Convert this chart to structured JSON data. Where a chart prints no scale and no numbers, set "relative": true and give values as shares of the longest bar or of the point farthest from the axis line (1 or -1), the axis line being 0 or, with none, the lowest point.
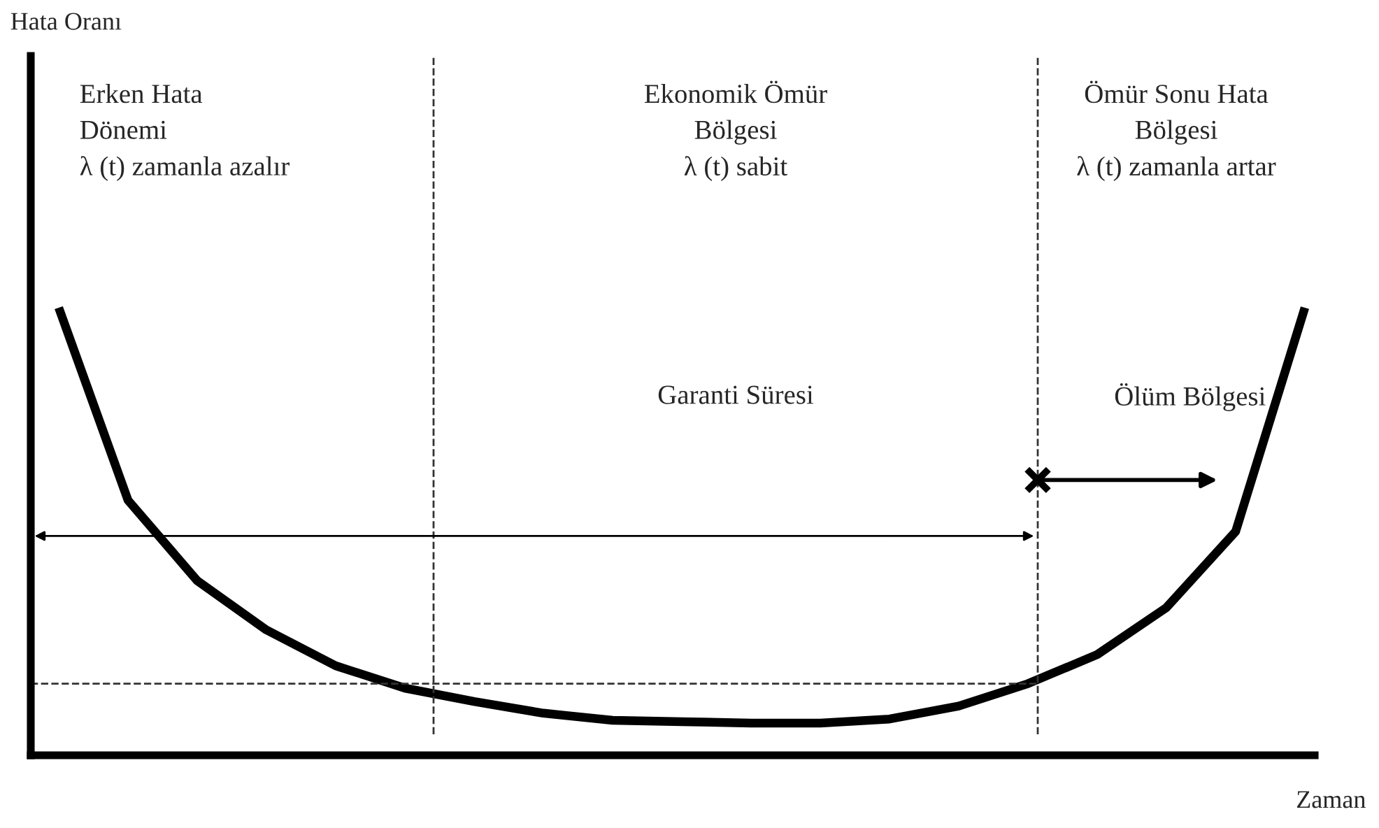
{
  "chart_data": {
    "type": "line",
    "relative": true,
    "xlabel": "Zaman",
    "categories": [
      null,
      null,
      null,
      null,
      null,
      null,
      null,
      null,
      null,
      null,
      null,
      null,
      null,
      null,
      null,
      null,
      null,
      null,
      null
    ],
    "series": [
      {
        "color": "#000000",
        "values": [
          1.0,
          0.57,
          0.39,
          0.28,
          0.2,
          0.15,
          0.12,
          0.094,
          0.078,
          0.075,
          0.072,
          0.072,
          0.081,
          0.11,
          0.16,
          0.225,
          0.33,
          0.5,
          1.0
        ]
      }
    ],
    "marker": "none",
    "line_style": "solid",
    "grid": false,
    "ref_lines": [
      {
        "axis": "y",
        "value": 0.16,
        "line_style": "dashed",
        "color": "#333333"
      }
    ],
    "annotations": [
      "Erken Hata\nDönemi\nλ (t) zamanla azalır",
      "Ekonomik Ömür\nBölgesi\nλ (t) sabit",
      "Ömür Sonu Hata\nBölgesi\nλ (t) zamanla artar",
      "Garanti Süresi",
      "Ölüm Bölgesi",
      "Hata Oranı"
    ]
  }
}
